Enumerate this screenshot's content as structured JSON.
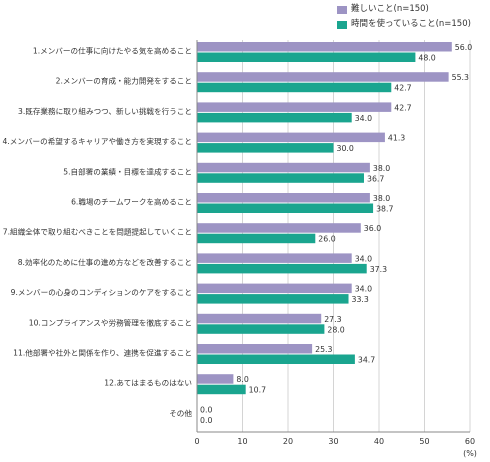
{
  "chart_data": {
    "type": "bar",
    "orientation": "horizontal",
    "categories": [
      "1.メンバーの仕事に向けたやる気を高めること",
      "2.メンバーの育成・能力開発をすること",
      "3.既存業務に取り組みつつ、新しい挑戦を行うこと",
      "4.メンバーの希望するキャリアや働き方を実現すること",
      "5.自部署の業績・目標を達成すること",
      "6.職場のチームワークを高めること",
      "7.組織全体で取り組むべきことを問題提起していくこと",
      "8.効率化のために仕事の進め方などを改善すること",
      "9.メンバーの心身のコンディションのケアをすること",
      "10.コンプライアンスや労務管理を徹底すること",
      "11.他部署や社外と関係を作り、連携を促進すること",
      "12.あてはまるものはない",
      "その他"
    ],
    "series": [
      {
        "name": "難しいこと(n=150)",
        "color": "#9d94c4",
        "values": [
          56.0,
          55.3,
          42.7,
          41.3,
          38.0,
          38.0,
          36.0,
          34.0,
          34.0,
          27.3,
          25.3,
          8.0,
          0.0
        ]
      },
      {
        "name": "時間を使っていること(n=150)",
        "color": "#1aa58f",
        "values": [
          48.0,
          42.7,
          34.0,
          30.0,
          36.7,
          38.7,
          26.0,
          37.3,
          33.3,
          28.0,
          34.7,
          10.7,
          0.0
        ]
      }
    ],
    "value_labels": [
      [
        "56.0",
        "55.3",
        "42.7",
        "41.3",
        "38.0",
        "38.0",
        "36.0",
        "34.0",
        "34.0",
        "27.3",
        "25.3",
        "8.0",
        "0.0"
      ],
      [
        "48.0",
        "42.7",
        "34.0",
        "30.0",
        "36.7",
        "38.7",
        "26.0",
        "37.3",
        "33.3",
        "28.0",
        "34.7",
        "10.7",
        "0.0"
      ]
    ],
    "xlim": [
      0,
      60
    ],
    "xticks": [
      0,
      10,
      20,
      30,
      40,
      50,
      60
    ],
    "unit_label": "(%)",
    "grid": true,
    "legend_position": "top-right"
  }
}
